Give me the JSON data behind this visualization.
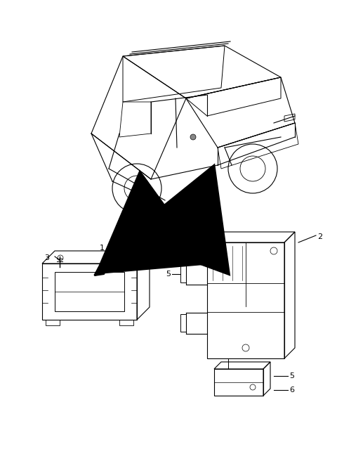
{
  "background_color": "#ffffff",
  "figure_width": 4.8,
  "figure_height": 6.56,
  "dpi": 100,
  "line_color": "#000000",
  "label_fontsize": 8,
  "arrow_color": "#000000"
}
